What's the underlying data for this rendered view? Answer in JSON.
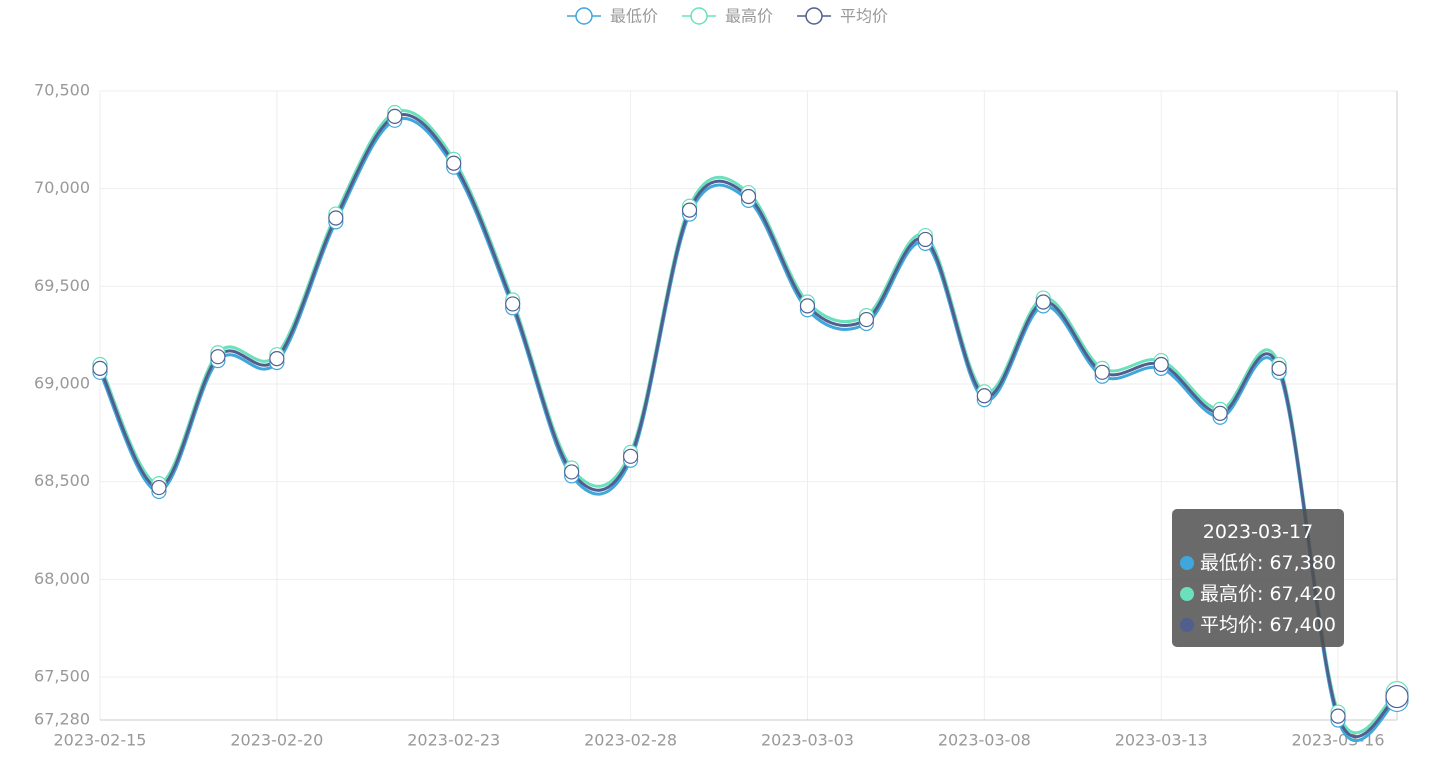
{
  "chart_data": {
    "type": "line",
    "smooth": true,
    "categories": [
      "2023-02-15",
      null,
      null,
      "2023-02-20",
      null,
      null,
      "2023-02-23",
      null,
      null,
      "2023-02-28",
      null,
      null,
      "2023-03-03",
      null,
      null,
      "2023-03-08",
      null,
      null,
      "2023-03-13",
      null,
      null,
      "2023-03-16",
      "2023-03-17"
    ],
    "series": [
      {
        "name": "最低价",
        "color": "#3fa7dc",
        "values": [
          69060,
          68450,
          69120,
          69110,
          69830,
          70350,
          70110,
          69390,
          68530,
          68610,
          69870,
          69940,
          69380,
          69310,
          69720,
          68920,
          69400,
          69040,
          69080,
          68830,
          69060,
          67280,
          67380
        ]
      },
      {
        "name": "最高价",
        "color": "#6be0bd",
        "values": [
          69100,
          68490,
          69160,
          69150,
          69870,
          70390,
          70150,
          69430,
          68570,
          68650,
          69910,
          69980,
          69420,
          69350,
          69760,
          68960,
          69440,
          69080,
          69120,
          68870,
          69100,
          67320,
          67420
        ]
      },
      {
        "name": "平均价",
        "color": "#515f8f",
        "values": [
          69080,
          68470,
          69140,
          69130,
          69850,
          70370,
          70130,
          69410,
          68550,
          68630,
          69890,
          69960,
          69400,
          69330,
          69740,
          68940,
          69420,
          69060,
          69100,
          68850,
          69080,
          67300,
          67400
        ]
      }
    ],
    "ylim": [
      67280,
      70500
    ],
    "yticks": [
      {
        "value": 67280,
        "label": "67,280"
      },
      {
        "value": 67500,
        "label": "67,500"
      },
      {
        "value": 68000,
        "label": "68,000"
      },
      {
        "value": 68500,
        "label": "68,500"
      },
      {
        "value": 69000,
        "label": "69,000"
      },
      {
        "value": 69500,
        "label": "69,500"
      },
      {
        "value": 70000,
        "label": "70,000"
      },
      {
        "value": 70500,
        "label": "70,500"
      }
    ],
    "grid": true,
    "legend": "top"
  }
}
